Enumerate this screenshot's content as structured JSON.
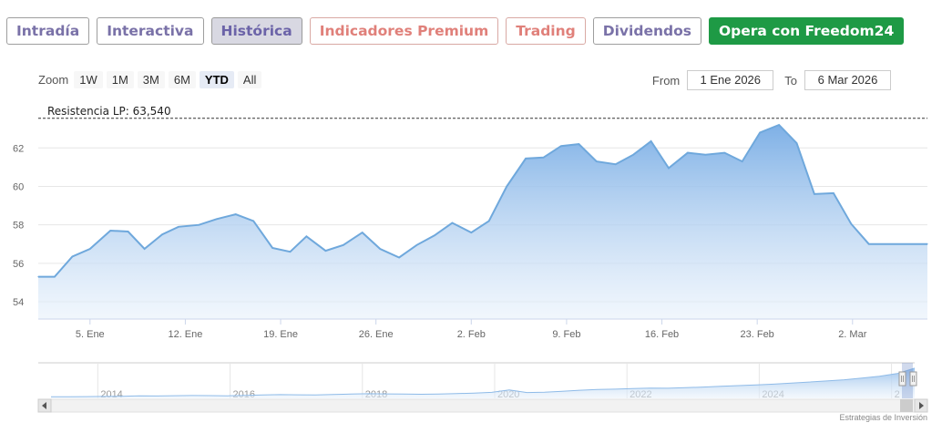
{
  "tabs": [
    {
      "label": "Intradía",
      "style": "purple"
    },
    {
      "label": "Interactiva",
      "style": "purple"
    },
    {
      "label": "Histórica",
      "style": "active"
    },
    {
      "label": "Indicadores Premium",
      "style": "salmon"
    },
    {
      "label": "Trading",
      "style": "salmon"
    },
    {
      "label": "Dividendos",
      "style": "purple"
    },
    {
      "label": "Opera con Freedom24",
      "style": "green"
    }
  ],
  "zoom": {
    "label": "Zoom",
    "buttons": [
      "1W",
      "1M",
      "3M",
      "6M",
      "YTD",
      "All"
    ],
    "selected": "YTD"
  },
  "range": {
    "from_label": "From",
    "from_value": "1 Ene 2026",
    "to_label": "To",
    "to_value": "6 Mar 2026"
  },
  "credit": "Estrategias de Inversión",
  "chart_data": {
    "type": "area",
    "y_ticks": [
      "54",
      "56",
      "58",
      "60",
      "62"
    ],
    "ylim": [
      53.1,
      64.1
    ],
    "x_ticks": [
      "5. Ene",
      "12. Ene",
      "19. Ene",
      "26. Ene",
      "2. Feb",
      "9. Feb",
      "16. Feb",
      "23. Feb",
      "2. Mar"
    ],
    "x_tick_days": [
      4,
      11,
      18,
      25,
      32,
      39,
      46,
      53,
      60
    ],
    "x_range_days": [
      0.2,
      65.5
    ],
    "resistance": {
      "label": "Resistencia LP: 63,540",
      "value": 63.54
    },
    "series": [
      {
        "days": [
          0.2,
          1.4,
          2.7,
          4.0,
          5.5,
          6.8,
          8.0,
          9.3,
          10.5,
          12.0,
          13.3,
          14.7,
          16.0,
          17.4,
          18.7,
          19.9,
          21.3,
          22.6,
          24.0,
          25.3,
          26.7,
          28.0,
          29.3,
          30.6,
          32.0,
          33.3,
          34.6,
          36.0,
          37.3,
          38.6,
          39.9,
          41.2,
          42.6,
          43.9,
          45.2,
          46.5,
          47.9,
          49.2,
          50.6,
          51.9,
          53.2,
          54.6,
          55.9,
          57.2,
          58.6,
          59.9,
          61.2,
          62.5,
          63.9,
          65.5
        ],
        "values": [
          55.3,
          55.3,
          56.35,
          56.75,
          57.7,
          57.65,
          56.75,
          57.5,
          57.9,
          58.0,
          58.3,
          58.55,
          58.2,
          56.8,
          56.6,
          57.4,
          56.65,
          56.95,
          57.6,
          56.75,
          56.3,
          56.95,
          57.45,
          58.1,
          57.6,
          58.2,
          60.0,
          61.45,
          61.5,
          62.1,
          62.2,
          61.3,
          61.15,
          61.65,
          62.35,
          60.95,
          61.75,
          61.65,
          61.75,
          61.3,
          62.8,
          63.2,
          62.25,
          59.6,
          59.65,
          58.05,
          57.0,
          57.0,
          57.0,
          57.0
        ]
      }
    ],
    "navigator": {
      "year_ticks": [
        "2014",
        "2016",
        "2018",
        "2020",
        "2022",
        "2024",
        "2"
      ],
      "year_range": [
        2013.1,
        2026.35
      ],
      "values": [
        0.9,
        0.95,
        1.0,
        1.1,
        1.2,
        1.4,
        1.35,
        1.5,
        1.6,
        1.55,
        1.45,
        1.7,
        1.9,
        2.1,
        2.0,
        1.9,
        2.2,
        2.4,
        2.6,
        2.5,
        2.4,
        2.3,
        2.45,
        2.7,
        3.0,
        3.4,
        4.8,
        3.3,
        3.5,
        4.0,
        4.6,
        5.0,
        5.2,
        5.5,
        5.8,
        5.7,
        6.0,
        6.4,
        6.8,
        7.2,
        7.6,
        8.0,
        8.6,
        9.2,
        9.8,
        10.5,
        11.4,
        12.5,
        14.0,
        17.0
      ],
      "ylim": [
        0,
        18
      ]
    }
  }
}
